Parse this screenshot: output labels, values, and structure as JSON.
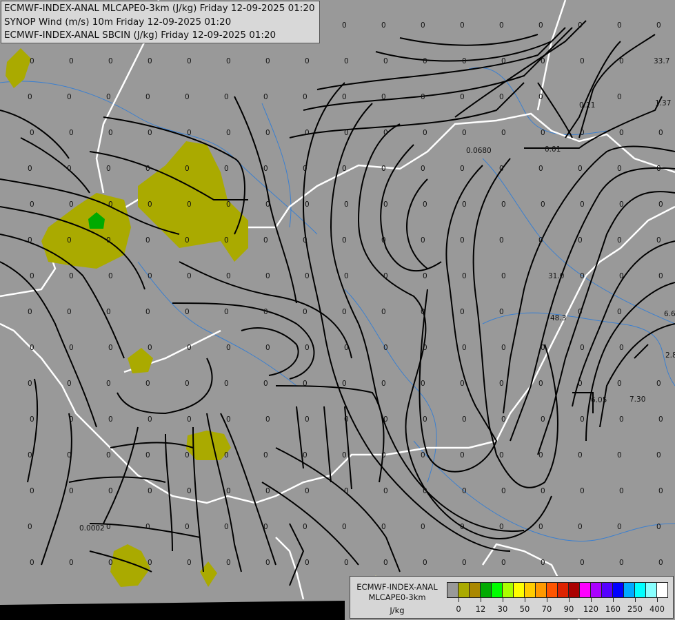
{
  "header": {
    "lines": [
      "ECMWF-INDEX-ANAL MLCAPE0-3km (J/kg) Friday 12-09-2025 01:20",
      "SYNOP Wind (m/s) 10m Friday 12-09-2025 01:20",
      "ECMWF-INDEX-ANAL SBCIN (J/kg) Friday 12-09-2025 01:20"
    ]
  },
  "legend": {
    "title_line1": "ECMWF-INDEX-ANAL",
    "title_line2": "MLCAPE0-3km",
    "unit": "J/kg",
    "colors": [
      "#999999",
      "#aaaa00",
      "#aa8800",
      "#00aa00",
      "#00ff00",
      "#aaff00",
      "#ffff00",
      "#ffcc00",
      "#ff9900",
      "#ff5500",
      "#dd2200",
      "#aa0000",
      "#ff00ff",
      "#aa00ff",
      "#5500ff",
      "#0000ff",
      "#00aaff",
      "#00ffff",
      "#88ffff",
      "#ffffff"
    ],
    "tick_labels": [
      "0",
      "12",
      "30",
      "50",
      "70",
      "90",
      "120",
      "160",
      "250",
      "400"
    ]
  },
  "map": {
    "background": "#999999",
    "border_color": "#ffffff",
    "river_color": "#3a7fd0",
    "streamline_color": "#000000",
    "cape_color": "#aaaa00",
    "cape_high_color": "#00aa00",
    "zero_label": "0",
    "nonzero_labels": [
      "33.7",
      "1.37",
      "0.0680",
      "0.01",
      "0.21",
      "31.0",
      "48.3",
      "6.6",
      "2.8",
      "6.05",
      "7.30",
      "0.0002"
    ]
  }
}
